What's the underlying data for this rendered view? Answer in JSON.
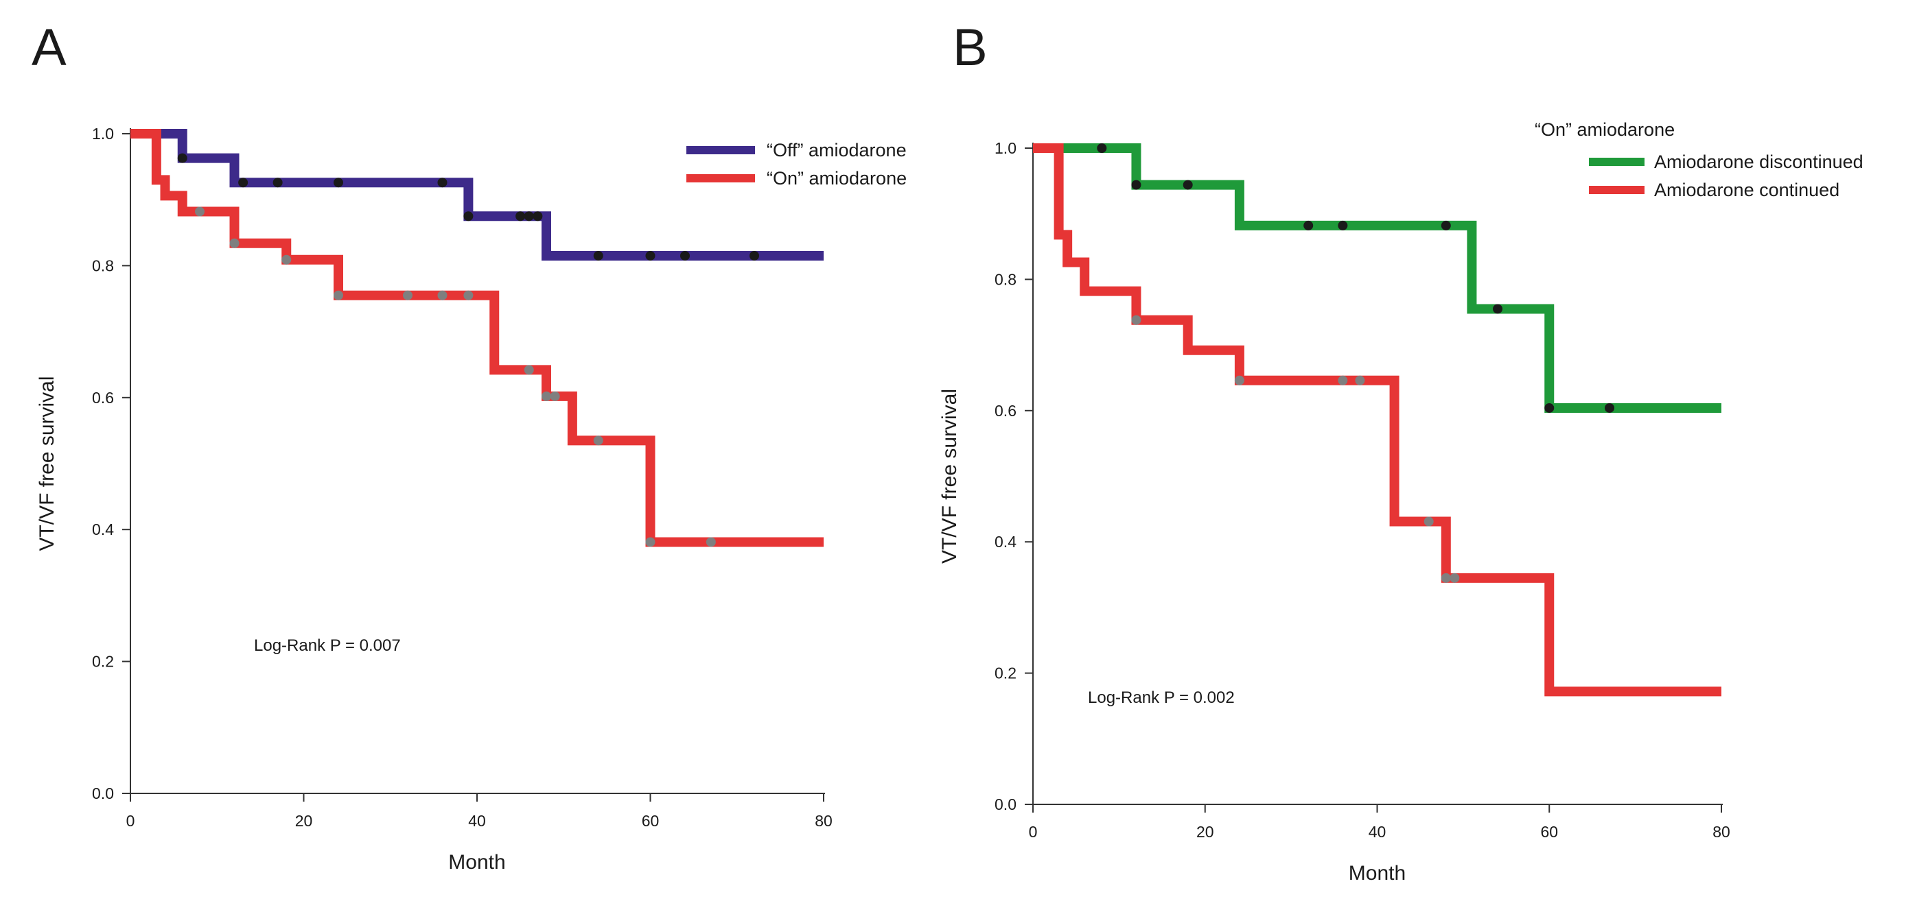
{
  "chart_data": [
    {
      "type": "line",
      "panel": "A",
      "xlabel": "Month",
      "ylabel": "VT/VF free survival",
      "xlim": [
        0,
        80
      ],
      "ylim": [
        0,
        1
      ],
      "xticks": [
        0,
        20,
        40,
        60,
        80
      ],
      "yticks": [
        0,
        0.2,
        0.4,
        0.6,
        0.8,
        1.0
      ],
      "ytick_labels": [
        "0.0",
        "0.2",
        "0.4",
        "0.6",
        "0.8",
        "1.0"
      ],
      "legend_title": "",
      "legend_position": "top-right",
      "annotation": "Log-Rank P = 0.007",
      "series": [
        {
          "name": "“Off” amiodarone",
          "color": "#3d2a8a",
          "censor_color": "#1a1a1a",
          "steps": [
            [
              0,
              1.0
            ],
            [
              6,
              0.963
            ],
            [
              12,
              0.926
            ],
            [
              39,
              0.875
            ],
            [
              48,
              0.815
            ],
            [
              80,
              0.815
            ]
          ],
          "censor_x": [
            6,
            13,
            17,
            24,
            36,
            39,
            45,
            46,
            47,
            54,
            60,
            64,
            72
          ]
        },
        {
          "name": "“On” amiodarone",
          "color": "#e63535",
          "censor_color": "#7f7f7f",
          "steps": [
            [
              0,
              1.0
            ],
            [
              3,
              0.93
            ],
            [
              4,
              0.906
            ],
            [
              6,
              0.882
            ],
            [
              12,
              0.834
            ],
            [
              18,
              0.809
            ],
            [
              24,
              0.755
            ],
            [
              42,
              0.642
            ],
            [
              48,
              0.602
            ],
            [
              51,
              0.535
            ],
            [
              60,
              0.381
            ],
            [
              80,
              0.381
            ]
          ],
          "censor_x": [
            8,
            12,
            18,
            24,
            32,
            36,
            39,
            46,
            48,
            49,
            54,
            60,
            67
          ]
        }
      ]
    },
    {
      "type": "line",
      "panel": "B",
      "xlabel": "Month",
      "ylabel": "VT/VF free survival",
      "xlim": [
        0,
        80
      ],
      "ylim": [
        0,
        1
      ],
      "xticks": [
        0,
        20,
        40,
        60,
        80
      ],
      "yticks": [
        0,
        0.2,
        0.4,
        0.6,
        0.8,
        1.0
      ],
      "ytick_labels": [
        "0.0",
        "0.2",
        "0.4",
        "0.6",
        "0.8",
        "1.0"
      ],
      "legend_title": "“On” amiodarone",
      "legend_position": "top-right",
      "annotation": "Log-Rank P = 0.002",
      "series": [
        {
          "name": "Amiodarone discontinued",
          "color": "#1f9a3a",
          "censor_color": "#1a1a1a",
          "steps": [
            [
              0,
              1.0
            ],
            [
              12,
              0.944
            ],
            [
              24,
              0.882
            ],
            [
              51,
              0.755
            ],
            [
              60,
              0.604
            ],
            [
              80,
              0.604
            ]
          ],
          "censor_x": [
            8,
            12,
            18,
            32,
            36,
            48,
            54,
            60,
            67
          ]
        },
        {
          "name": "Amiodarone continued",
          "color": "#e63535",
          "censor_color": "#7f7f7f",
          "steps": [
            [
              0,
              1.0
            ],
            [
              3,
              0.868
            ],
            [
              4,
              0.826
            ],
            [
              6,
              0.782
            ],
            [
              12,
              0.738
            ],
            [
              18,
              0.692
            ],
            [
              24,
              0.646
            ],
            [
              42,
              0.431
            ],
            [
              48,
              0.345
            ],
            [
              60,
              0.172
            ],
            [
              80,
              0.172
            ]
          ],
          "censor_x": [
            12,
            24,
            36,
            38,
            46,
            48,
            49
          ]
        }
      ]
    }
  ]
}
